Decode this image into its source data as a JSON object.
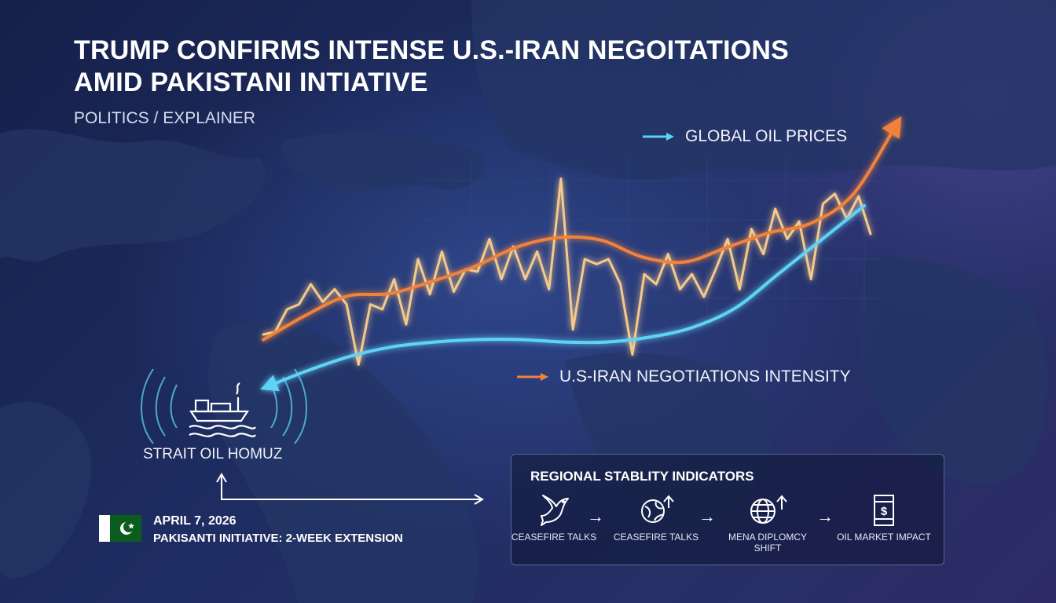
{
  "headline": {
    "line1": "TRUMP CONFIRMS INTENSE U.S.-IRAN NEGOITATIONS",
    "line2": "AMID PAKISTANI INTIATIVE"
  },
  "category": "POLITICS / EXPLAINER",
  "colors": {
    "oil_line": "#f4c98a",
    "oil_trend": "#f0823a",
    "negotiation_line": "#5ed2f5",
    "background": "#1a2550",
    "flag_green": "#0b5d1e"
  },
  "chart_data": {
    "type": "line",
    "title": "",
    "xlabel": "",
    "ylabel": "",
    "series": [
      {
        "name": "GLOBAL OIL PRICES",
        "color": "#f4c98a",
        "values": [
          0.2,
          0.21,
          0.3,
          0.32,
          0.4,
          0.33,
          0.38,
          0.32,
          0.08,
          0.32,
          0.3,
          0.42,
          0.24,
          0.5,
          0.36,
          0.53,
          0.37,
          0.46,
          0.45,
          0.58,
          0.42,
          0.55,
          0.42,
          0.53,
          0.38,
          0.82,
          0.22,
          0.5,
          0.48,
          0.5,
          0.4,
          0.12,
          0.44,
          0.4,
          0.52,
          0.38,
          0.44,
          0.35,
          0.46,
          0.58,
          0.38,
          0.62,
          0.52,
          0.7,
          0.58,
          0.65,
          0.42,
          0.72,
          0.76,
          0.66,
          0.75,
          0.6
        ]
      },
      {
        "name": "U.S-IRAN NEGOTIATIONS INTENSITY",
        "color": "#f0823a",
        "values": [
          0.12,
          0.22,
          0.3,
          0.31,
          0.36,
          0.42,
          0.5,
          0.54,
          0.53,
          0.46,
          0.44,
          0.5,
          0.56,
          0.6,
          0.72,
          1.0
        ]
      },
      {
        "name": "",
        "color": "#5ed2f5",
        "values": [
          0.05,
          0.12,
          0.18,
          0.22,
          0.24,
          0.25,
          0.25,
          0.24,
          0.24,
          0.26,
          0.3,
          0.38,
          0.52,
          0.66,
          0.8
        ]
      }
    ],
    "legend": [
      {
        "label": "GLOBAL OIL PRICES",
        "arrow_color": "#5ed2f5"
      },
      {
        "label": "U.S-IRAN NEGOTIATIONS INTENSITY",
        "arrow_color": "#f0823a"
      }
    ],
    "grid": false
  },
  "location": {
    "label": "STRAIT OIL HOMUZ",
    "icon": "oil-tanker-icon"
  },
  "event": {
    "date": "APRIL 7, 2026",
    "detail": "PAKISANTI INITIATIVE: 2-WEEK EXTENSION",
    "flag": "pakistan-flag-icon"
  },
  "panel": {
    "title": "REGIONAL STABLITY INDICATORS",
    "indicators": [
      {
        "label": "CEASEFIRE TALKS",
        "icon": "dove-icon"
      },
      {
        "label": "CEASEFIRE TALKS",
        "icon": "globe-arrow-up-icon"
      },
      {
        "label": "MENA DIPLOMCY SHIFT",
        "icon": "globe-network-arrow-icon"
      },
      {
        "label": "OIL MARKET IMPACT",
        "icon": "oil-barrel-dollar-icon"
      }
    ]
  }
}
